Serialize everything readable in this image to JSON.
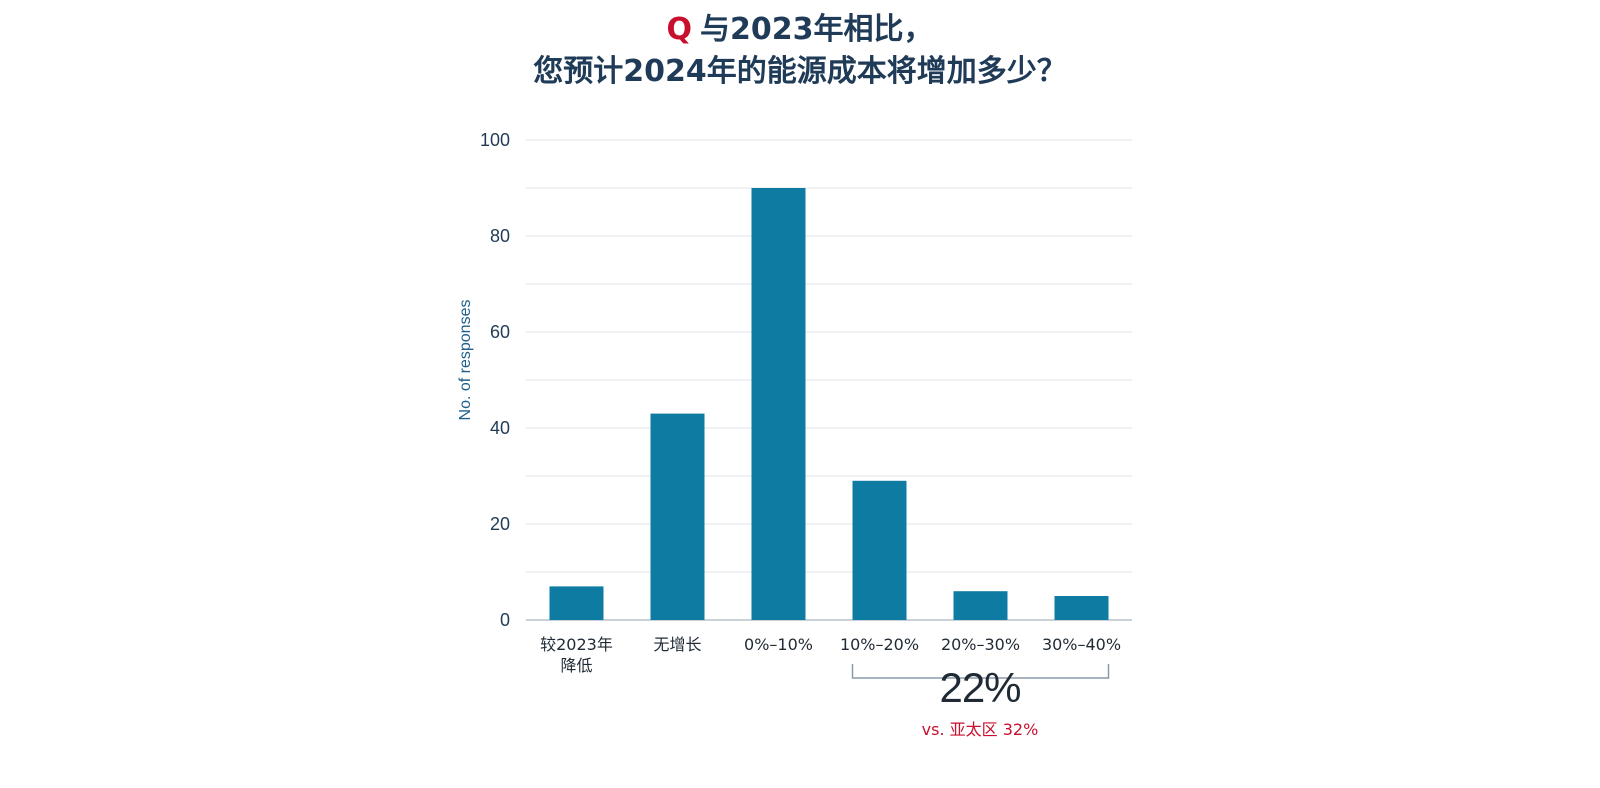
{
  "title": {
    "q_marker": "Q",
    "line1": "与2023年相比，",
    "line2": "您预计2024年的能源成本将增加多少？"
  },
  "chart_data": {
    "type": "bar",
    "categories": [
      [
        "较2023年",
        "降低"
      ],
      [
        "无增长"
      ],
      [
        "0%–10%"
      ],
      [
        "10%–20%"
      ],
      [
        "20%–30%"
      ],
      [
        "30%–40%"
      ]
    ],
    "values": [
      7,
      43,
      90,
      29,
      6,
      5
    ],
    "ylabel": "No. of responses",
    "ylim": [
      0,
      100
    ],
    "yticks": [
      0,
      20,
      40,
      60,
      80,
      100
    ],
    "grid": true,
    "bar_color": "#0e7ba3",
    "annotation": {
      "value": "22%",
      "note": "vs. 亚太区 32%",
      "bracket_categories": [
        "10%–20%",
        "20%–30%",
        "30%–40%"
      ]
    }
  }
}
